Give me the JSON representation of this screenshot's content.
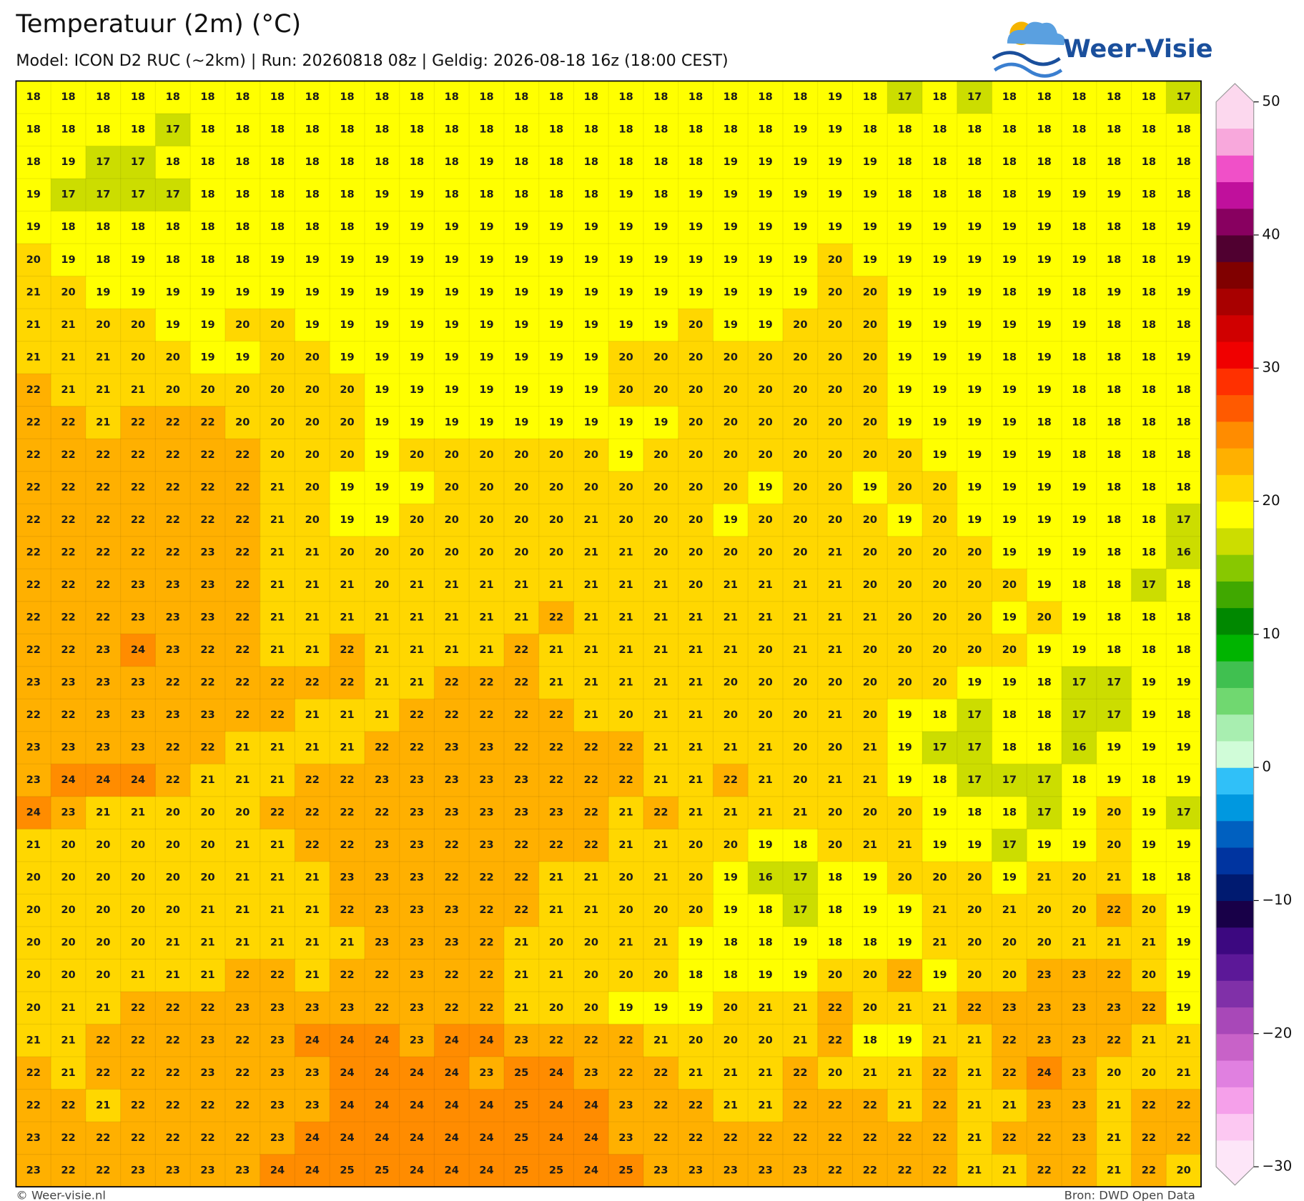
{
  "title": "Temperatuur (2m) (°C)",
  "subtitle": "Model: ICON D2 RUC (~2km)  |  Run: 20260818 08z  |  Geldig: 2026-08-18 16z (18:00 CEST)",
  "logo": "Weer-Visie",
  "footer_left": "© Weer-visie.nl",
  "footer_right": "Bron: DWD Open Data",
  "grid": {
    "values": [
      [
        18,
        18,
        18,
        18,
        18,
        18,
        18,
        18,
        18,
        18,
        18,
        18,
        18,
        18,
        18,
        18,
        18,
        18,
        18,
        18,
        18,
        18,
        18,
        19,
        18,
        17,
        18,
        17,
        18,
        18,
        18,
        18,
        18,
        17
      ],
      [
        18,
        18,
        18,
        18,
        17,
        18,
        18,
        18,
        18,
        18,
        18,
        18,
        18,
        18,
        18,
        18,
        18,
        18,
        18,
        18,
        18,
        18,
        19,
        19,
        18,
        18,
        18,
        18,
        18,
        18,
        18,
        18,
        18,
        18
      ],
      [
        18,
        19,
        17,
        17,
        18,
        18,
        18,
        18,
        18,
        18,
        18,
        18,
        18,
        19,
        18,
        18,
        18,
        18,
        18,
        18,
        19,
        19,
        19,
        19,
        19,
        18,
        18,
        18,
        18,
        18,
        18,
        18,
        18,
        18
      ],
      [
        19,
        17,
        17,
        17,
        17,
        18,
        18,
        18,
        18,
        18,
        19,
        19,
        18,
        18,
        18,
        18,
        18,
        19,
        18,
        19,
        19,
        19,
        19,
        19,
        19,
        18,
        18,
        18,
        18,
        19,
        19,
        19,
        18,
        18
      ],
      [
        19,
        18,
        18,
        18,
        18,
        18,
        18,
        18,
        18,
        18,
        19,
        19,
        19,
        19,
        19,
        19,
        19,
        19,
        19,
        19,
        19,
        19,
        19,
        19,
        19,
        19,
        19,
        19,
        19,
        19,
        18,
        18,
        18,
        19
      ],
      [
        20,
        19,
        18,
        19,
        18,
        18,
        18,
        19,
        19,
        19,
        19,
        19,
        19,
        19,
        19,
        19,
        19,
        19,
        19,
        19,
        19,
        19,
        19,
        20,
        19,
        19,
        19,
        19,
        19,
        19,
        19,
        18,
        18,
        19
      ],
      [
        21,
        20,
        19,
        19,
        19,
        19,
        19,
        19,
        19,
        19,
        19,
        19,
        19,
        19,
        19,
        19,
        19,
        19,
        19,
        19,
        19,
        19,
        19,
        20,
        20,
        19,
        19,
        19,
        18,
        19,
        18,
        19,
        18,
        19
      ],
      [
        21,
        21,
        20,
        20,
        19,
        19,
        20,
        20,
        19,
        19,
        19,
        19,
        19,
        19,
        19,
        19,
        19,
        19,
        19,
        20,
        19,
        19,
        20,
        20,
        20,
        19,
        19,
        19,
        19,
        19,
        19,
        18,
        18,
        18
      ],
      [
        21,
        21,
        21,
        20,
        20,
        19,
        19,
        20,
        20,
        19,
        19,
        19,
        19,
        19,
        19,
        19,
        19,
        20,
        20,
        20,
        20,
        20,
        20,
        20,
        20,
        19,
        19,
        19,
        18,
        19,
        18,
        18,
        18,
        19
      ],
      [
        22,
        21,
        21,
        21,
        20,
        20,
        20,
        20,
        20,
        20,
        19,
        19,
        19,
        19,
        19,
        19,
        19,
        20,
        20,
        20,
        20,
        20,
        20,
        20,
        20,
        19,
        19,
        19,
        19,
        19,
        18,
        18,
        18,
        18
      ],
      [
        22,
        22,
        21,
        22,
        22,
        22,
        20,
        20,
        20,
        20,
        19,
        19,
        19,
        19,
        19,
        19,
        19,
        19,
        19,
        20,
        20,
        20,
        20,
        20,
        20,
        19,
        19,
        19,
        19,
        18,
        18,
        18,
        18,
        18
      ],
      [
        22,
        22,
        22,
        22,
        22,
        22,
        22,
        20,
        20,
        20,
        19,
        20,
        20,
        20,
        20,
        20,
        20,
        19,
        20,
        20,
        20,
        20,
        20,
        20,
        20,
        20,
        19,
        19,
        19,
        19,
        18,
        18,
        18,
        18
      ],
      [
        22,
        22,
        22,
        22,
        22,
        22,
        22,
        21,
        20,
        19,
        19,
        19,
        20,
        20,
        20,
        20,
        20,
        20,
        20,
        20,
        20,
        19,
        20,
        20,
        19,
        20,
        20,
        19,
        19,
        19,
        19,
        18,
        18,
        18
      ],
      [
        22,
        22,
        22,
        22,
        22,
        22,
        22,
        21,
        20,
        19,
        19,
        20,
        20,
        20,
        20,
        20,
        21,
        20,
        20,
        20,
        19,
        20,
        20,
        20,
        20,
        19,
        20,
        19,
        19,
        19,
        19,
        18,
        18,
        17
      ],
      [
        22,
        22,
        22,
        22,
        22,
        23,
        22,
        21,
        21,
        20,
        20,
        20,
        20,
        20,
        20,
        20,
        21,
        21,
        20,
        20,
        20,
        20,
        20,
        21,
        20,
        20,
        20,
        20,
        19,
        19,
        19,
        18,
        18,
        16
      ],
      [
        22,
        22,
        22,
        23,
        23,
        23,
        22,
        21,
        21,
        21,
        20,
        21,
        21,
        21,
        21,
        21,
        21,
        21,
        21,
        20,
        21,
        21,
        21,
        21,
        20,
        20,
        20,
        20,
        20,
        19,
        18,
        18,
        17,
        18
      ],
      [
        22,
        22,
        22,
        23,
        23,
        23,
        22,
        21,
        21,
        21,
        21,
        21,
        21,
        21,
        21,
        22,
        21,
        21,
        21,
        21,
        21,
        21,
        21,
        21,
        21,
        20,
        20,
        20,
        19,
        20,
        19,
        18,
        18,
        18
      ],
      [
        22,
        22,
        23,
        24,
        23,
        22,
        22,
        21,
        21,
        22,
        21,
        21,
        21,
        21,
        22,
        21,
        21,
        21,
        21,
        21,
        21,
        20,
        21,
        21,
        20,
        20,
        20,
        20,
        20,
        19,
        19,
        18,
        18,
        18
      ],
      [
        23,
        23,
        23,
        23,
        22,
        22,
        22,
        22,
        22,
        22,
        21,
        21,
        22,
        22,
        22,
        21,
        21,
        21,
        21,
        21,
        20,
        20,
        20,
        20,
        20,
        20,
        20,
        19,
        19,
        18,
        17,
        17,
        19,
        19
      ],
      [
        22,
        22,
        23,
        23,
        23,
        23,
        22,
        22,
        21,
        21,
        21,
        22,
        22,
        22,
        22,
        22,
        21,
        20,
        21,
        21,
        20,
        20,
        20,
        21,
        20,
        19,
        18,
        17,
        18,
        18,
        17,
        17,
        19,
        18
      ],
      [
        23,
        23,
        23,
        23,
        22,
        22,
        21,
        21,
        21,
        21,
        22,
        22,
        23,
        23,
        22,
        22,
        22,
        22,
        21,
        21,
        21,
        21,
        20,
        20,
        21,
        19,
        17,
        17,
        18,
        18,
        16,
        19,
        19,
        19
      ],
      [
        23,
        24,
        24,
        24,
        22,
        21,
        21,
        21,
        22,
        22,
        23,
        23,
        23,
        23,
        23,
        22,
        22,
        22,
        21,
        21,
        22,
        21,
        20,
        21,
        21,
        19,
        18,
        17,
        17,
        17,
        18,
        19,
        18,
        19
      ],
      [
        24,
        23,
        21,
        21,
        20,
        20,
        20,
        22,
        22,
        22,
        22,
        23,
        23,
        23,
        23,
        23,
        22,
        21,
        22,
        21,
        21,
        21,
        21,
        20,
        20,
        20,
        19,
        18,
        18,
        17,
        19,
        20,
        19,
        17
      ],
      [
        21,
        20,
        20,
        20,
        20,
        20,
        21,
        21,
        22,
        22,
        23,
        23,
        22,
        23,
        22,
        22,
        22,
        21,
        21,
        20,
        20,
        19,
        18,
        20,
        21,
        21,
        19,
        19,
        17,
        19,
        19,
        20,
        19,
        19
      ],
      [
        20,
        20,
        20,
        20,
        20,
        20,
        21,
        21,
        21,
        23,
        23,
        23,
        22,
        22,
        22,
        21,
        21,
        20,
        21,
        20,
        19,
        16,
        17,
        18,
        19,
        20,
        20,
        20,
        19,
        21,
        20,
        21,
        18,
        18
      ],
      [
        20,
        20,
        20,
        20,
        20,
        21,
        21,
        21,
        21,
        22,
        23,
        23,
        23,
        22,
        22,
        21,
        21,
        20,
        20,
        20,
        19,
        18,
        17,
        18,
        19,
        19,
        21,
        20,
        21,
        20,
        20,
        22,
        20,
        19
      ],
      [
        20,
        20,
        20,
        20,
        21,
        21,
        21,
        21,
        21,
        21,
        23,
        23,
        23,
        22,
        21,
        20,
        20,
        21,
        21,
        19,
        18,
        18,
        19,
        18,
        18,
        19,
        21,
        20,
        20,
        20,
        21,
        21,
        21,
        19
      ],
      [
        20,
        20,
        20,
        21,
        21,
        21,
        22,
        22,
        21,
        22,
        22,
        23,
        22,
        22,
        21,
        21,
        20,
        20,
        20,
        18,
        18,
        19,
        19,
        20,
        20,
        22,
        19,
        20,
        20,
        23,
        23,
        22,
        20,
        19
      ],
      [
        20,
        21,
        21,
        22,
        22,
        22,
        23,
        23,
        23,
        23,
        22,
        23,
        22,
        22,
        21,
        20,
        20,
        19,
        19,
        19,
        20,
        21,
        21,
        22,
        20,
        21,
        21,
        22,
        23,
        23,
        23,
        23,
        22,
        19
      ],
      [
        21,
        21,
        22,
        22,
        22,
        23,
        22,
        23,
        24,
        24,
        24,
        23,
        24,
        24,
        23,
        22,
        22,
        22,
        21,
        20,
        20,
        20,
        21,
        22,
        18,
        19,
        21,
        21,
        22,
        23,
        23,
        22,
        21,
        21
      ],
      [
        22,
        21,
        22,
        22,
        22,
        23,
        22,
        23,
        23,
        24,
        24,
        24,
        24,
        23,
        25,
        24,
        23,
        22,
        22,
        21,
        21,
        21,
        22,
        20,
        21,
        21,
        22,
        21,
        22,
        24,
        23,
        20,
        20,
        21
      ],
      [
        22,
        22,
        21,
        22,
        22,
        22,
        22,
        23,
        23,
        24,
        24,
        24,
        24,
        24,
        25,
        24,
        24,
        23,
        22,
        22,
        21,
        21,
        22,
        22,
        22,
        21,
        22,
        21,
        21,
        23,
        23,
        21,
        22,
        22
      ],
      [
        23,
        22,
        22,
        22,
        22,
        22,
        22,
        23,
        24,
        24,
        24,
        24,
        24,
        24,
        25,
        24,
        24,
        23,
        22,
        22,
        22,
        22,
        22,
        22,
        22,
        22,
        22,
        21,
        22,
        22,
        23,
        21,
        22,
        22
      ],
      [
        23,
        22,
        22,
        23,
        23,
        23,
        23,
        24,
        24,
        25,
        25,
        24,
        24,
        24,
        25,
        25,
        24,
        25,
        23,
        23,
        23,
        23,
        23,
        22,
        22,
        22,
        22,
        21,
        21,
        22,
        22,
        21,
        22,
        20
      ]
    ]
  },
  "colorbar": {
    "ylim": [
      -30,
      50
    ],
    "yticks": [
      50,
      40,
      30,
      20,
      10,
      0,
      {
        "value": -10,
        "label": "−10"
      },
      {
        "value": -20,
        "label": "−20"
      },
      {
        "value": -30,
        "label": "−30"
      }
    ],
    "colors": [
      "#fde6f8",
      "#fcc8f2",
      "#f5a0ea",
      "#e080e0",
      "#c862c8",
      "#a848b8",
      "#8030a8",
      "#5c1898",
      "#3c0880",
      "#180048",
      "#001a70",
      "#0034a0",
      "#0060c0",
      "#0098e0",
      "#30c0f8",
      "#d0fcd8",
      "#a8eeb0",
      "#70d870",
      "#40c050",
      "#00b400",
      "#008800",
      "#40a800",
      "#88c800",
      "#ccdd00",
      "#ffff00",
      "#ffd700",
      "#ffb000",
      "#ff8c00",
      "#ff5a00",
      "#ff3000",
      "#f00000",
      "#d00000",
      "#a80000",
      "#800000",
      "#500030",
      "#880060",
      "#c0109c",
      "#f050c8",
      "#f8a8dc",
      "#fcd8ee"
    ]
  }
}
